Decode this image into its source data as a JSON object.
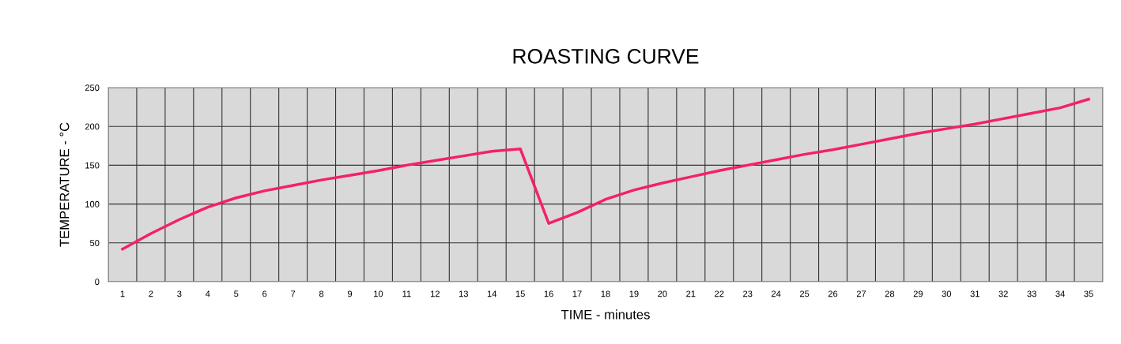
{
  "chart_data": {
    "type": "line",
    "title": "ROASTING CURVE",
    "xlabel": "TIME - minutes",
    "ylabel": "TEMPERATURE - °C",
    "categories": [
      "1",
      "2",
      "3",
      "4",
      "5",
      "6",
      "7",
      "8",
      "9",
      "10",
      "11",
      "12",
      "13",
      "14",
      "15",
      "16",
      "17",
      "18",
      "19",
      "20",
      "21",
      "22",
      "23",
      "24",
      "25",
      "26",
      "27",
      "28",
      "29",
      "30",
      "31",
      "32",
      "33",
      "34",
      "35"
    ],
    "series": [
      {
        "color": "#f5206a",
        "values": [
          42,
          62,
          80,
          96,
          108,
          117,
          124,
          131,
          137,
          143,
          150,
          156,
          162,
          168,
          171,
          75,
          89,
          106,
          118,
          127,
          135,
          143,
          150,
          157,
          164,
          170,
          177,
          184,
          191,
          197,
          203,
          210,
          217,
          224,
          235
        ]
      }
    ],
    "ylim": [
      0,
      250
    ],
    "yticks": [
      0,
      50,
      100,
      150,
      200,
      250
    ],
    "grid": true,
    "marker": "none",
    "line_style": "solid"
  }
}
